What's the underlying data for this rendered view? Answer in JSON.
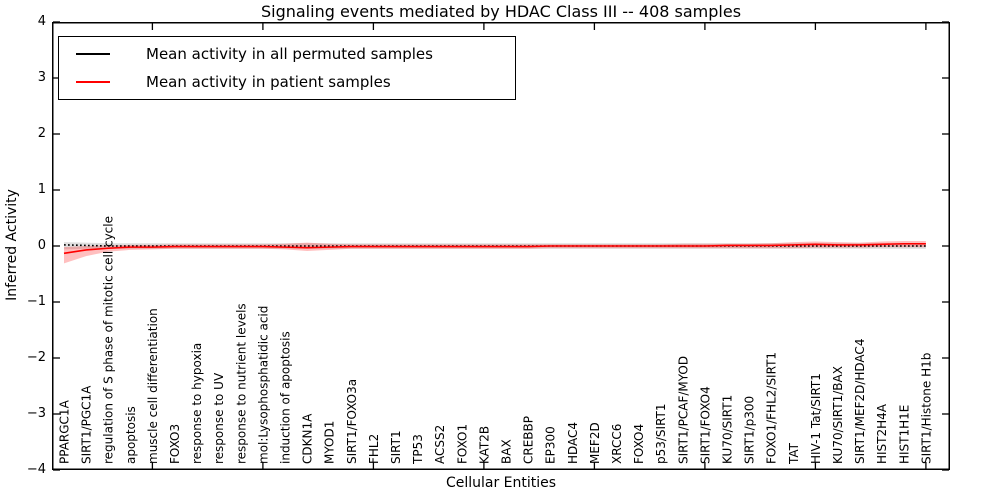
{
  "chart_data": {
    "type": "line",
    "title": "Signaling events mediated by HDAC Class III -- 408 samples",
    "xlabel": "Cellular Entities",
    "ylabel": "Inferred Activity",
    "ylim": [
      -4,
      4
    ],
    "yticks": [
      -4,
      -3,
      -2,
      -1,
      0,
      1,
      2,
      3,
      4
    ],
    "xtick_positions": [
      5,
      10,
      15,
      20,
      25,
      30,
      35,
      40
    ],
    "grid": false,
    "legend_position": "upper left",
    "categories": [
      "PPARGC1A",
      "SIRT1/PGC1A",
      "regulation of S phase of mitotic cell cycle",
      "apoptosis",
      "muscle cell differentiation",
      "FOXO3",
      "response to hypoxia",
      "response to UV",
      "response to nutrient levels",
      "mol:Lysophosphatidic acid",
      "induction of apoptosis",
      "CDKN1A",
      "MYOD1",
      "SIRT1/FOXO3a",
      "FHL2",
      "SIRT1",
      "TP53",
      "ACSS2",
      "FOXO1",
      "KAT2B",
      "BAX",
      "CREBBP",
      "EP300",
      "HDAC4",
      "MEF2D",
      "XRCC6",
      "FOXO4",
      "p53/SIRT1",
      "SIRT1/PCAF/MYOD",
      "SIRT1/FOXO4",
      "KU70/SIRT1",
      "SIRT1/p300",
      "FOXO1/FHL2/SIRT1",
      "TAT",
      "HIV-1 Tat/SIRT1",
      "KU70/SIRT1/BAX",
      "SIRT1/MEF2D/HDAC4",
      "HIST2H4A",
      "HIST1H1E",
      "SIRT1/Histone H1b"
    ],
    "series": [
      {
        "name": "Mean activity in all permuted samples",
        "color": "#000000",
        "style": "dotted",
        "values": [
          0.02,
          0.01,
          0,
          0,
          0,
          0,
          0,
          0,
          0,
          0,
          0,
          0,
          0,
          0,
          0,
          0,
          0,
          0,
          0,
          0,
          0,
          0,
          0,
          0,
          0,
          0,
          0,
          0,
          0,
          0,
          0,
          0,
          0,
          0,
          0,
          0,
          0,
          0,
          0,
          0
        ]
      },
      {
        "name": "Mean activity in patient samples",
        "color": "#ff0000",
        "style": "solid",
        "values": [
          -0.13,
          -0.07,
          -0.04,
          -0.02,
          -0.02,
          -0.01,
          -0.01,
          -0.01,
          -0.01,
          -0.01,
          -0.02,
          -0.03,
          -0.02,
          -0.01,
          -0.01,
          -0.01,
          -0.01,
          -0.01,
          -0.01,
          -0.01,
          -0.01,
          -0.01,
          0,
          0,
          0,
          0,
          0,
          0,
          0,
          0,
          0.01,
          0.01,
          0.01,
          0.02,
          0.03,
          0.02,
          0.02,
          0.03,
          0.04,
          0.04
        ]
      }
    ],
    "bands": [
      {
        "name": "permuted-std-band",
        "color": "#000000",
        "opacity": 0.13,
        "upper": [
          0.07,
          0.06,
          0.05,
          0.05,
          0.05,
          0.05,
          0.05,
          0.05,
          0.05,
          0.05,
          0.05,
          0.05,
          0.05,
          0.05,
          0.05,
          0.05,
          0.05,
          0.05,
          0.05,
          0.05,
          0.05,
          0.05,
          0.05,
          0.05,
          0.05,
          0.05,
          0.05,
          0.05,
          0.05,
          0.05,
          0.05,
          0.05,
          0.05,
          0.05,
          0.05,
          0.05,
          0.05,
          0.05,
          0.05,
          0.05
        ],
        "lower": [
          -0.06,
          -0.05,
          -0.05,
          -0.05,
          -0.05,
          -0.05,
          -0.05,
          -0.05,
          -0.05,
          -0.05,
          -0.05,
          -0.05,
          -0.05,
          -0.05,
          -0.05,
          -0.05,
          -0.05,
          -0.05,
          -0.05,
          -0.05,
          -0.05,
          -0.05,
          -0.05,
          -0.05,
          -0.05,
          -0.05,
          -0.05,
          -0.05,
          -0.05,
          -0.05,
          -0.05,
          -0.05,
          -0.05,
          -0.05,
          -0.05,
          -0.05,
          -0.05,
          -0.05,
          -0.05,
          -0.05
        ]
      },
      {
        "name": "patient-std-band",
        "color": "#ff0000",
        "opacity": 0.25,
        "upper": [
          -0.02,
          0,
          0.01,
          0.02,
          0.02,
          0.03,
          0.03,
          0.03,
          0.03,
          0.03,
          0.04,
          0.06,
          0.04,
          0.03,
          0.03,
          0.03,
          0.03,
          0.03,
          0.03,
          0.03,
          0.03,
          0.03,
          0.03,
          0.03,
          0.03,
          0.03,
          0.03,
          0.03,
          0.04,
          0.04,
          0.04,
          0.04,
          0.05,
          0.07,
          0.08,
          0.07,
          0.06,
          0.08,
          0.09,
          0.09
        ],
        "lower": [
          -0.31,
          -0.18,
          -0.1,
          -0.07,
          -0.06,
          -0.05,
          -0.05,
          -0.05,
          -0.05,
          -0.05,
          -0.06,
          -0.09,
          -0.07,
          -0.05,
          -0.05,
          -0.05,
          -0.05,
          -0.05,
          -0.05,
          -0.05,
          -0.05,
          -0.05,
          -0.04,
          -0.04,
          -0.04,
          -0.04,
          -0.04,
          -0.04,
          -0.04,
          -0.04,
          -0.04,
          -0.04,
          -0.04,
          -0.04,
          -0.03,
          -0.03,
          -0.03,
          -0.02,
          -0.02,
          -0.02
        ]
      }
    ]
  },
  "legend": {
    "items": [
      {
        "label": "Mean activity in all permuted samples",
        "color": "#000000"
      },
      {
        "label": "Mean activity in patient samples",
        "color": "#ff0000"
      }
    ]
  }
}
